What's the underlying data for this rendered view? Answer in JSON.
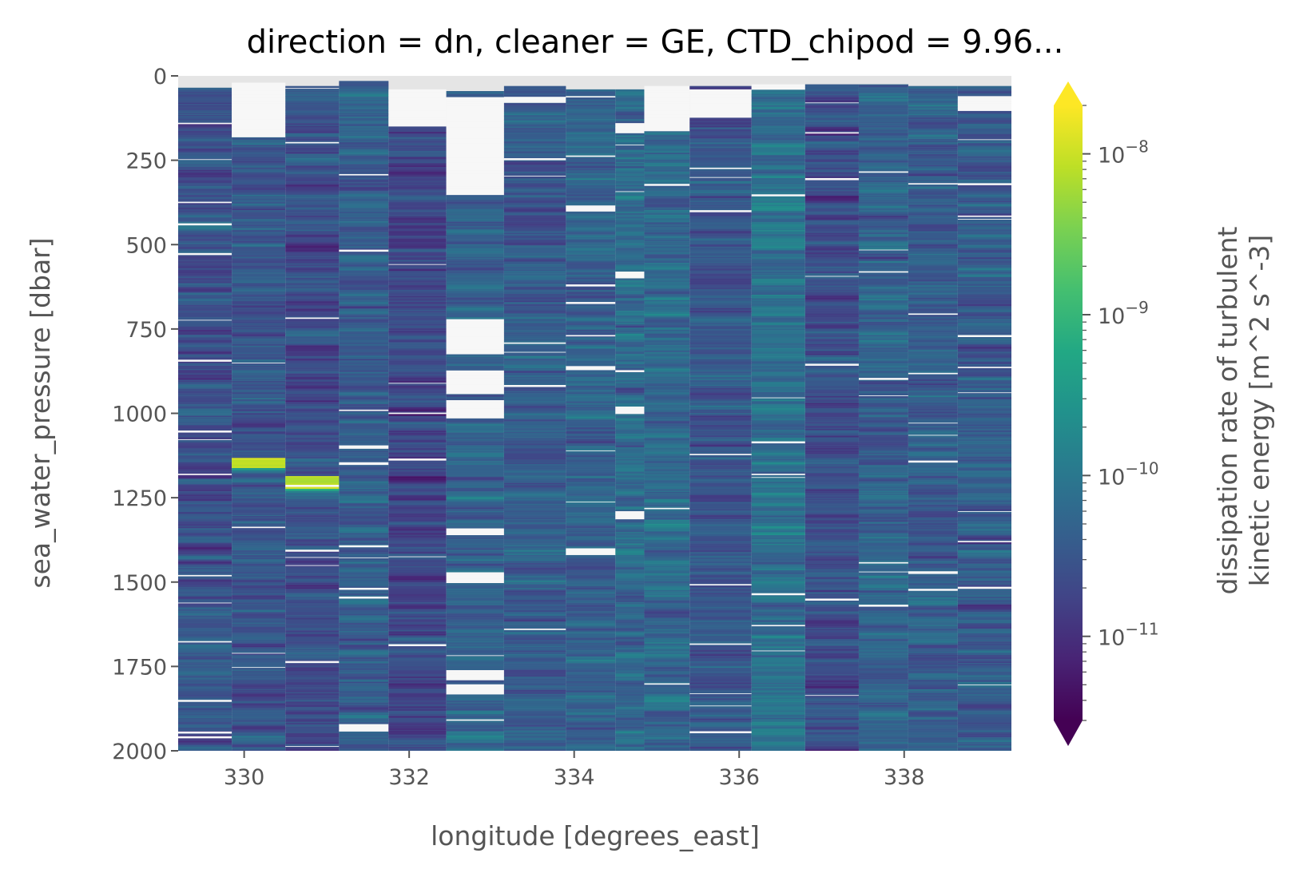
{
  "chart_data": {
    "type": "heatmap",
    "title": "direction = dn, cleaner = GE, CTD_chipod = 9.96...",
    "xlabel": "longitude [degrees_east]",
    "ylabel": "sea_water_pressure [dbar]",
    "xlim": [
      329.2,
      339.3
    ],
    "ylim": [
      0,
      2000
    ],
    "y_inverted": true,
    "x_ticks": [
      330,
      332,
      334,
      336,
      338
    ],
    "x_tick_labels": [
      "330",
      "332",
      "334",
      "336",
      "338"
    ],
    "y_ticks": [
      0,
      250,
      500,
      750,
      1000,
      1250,
      1500,
      1750,
      2000
    ],
    "y_tick_labels": [
      "0",
      "250",
      "500",
      "750",
      "1000",
      "1250",
      "1500",
      "1750",
      "2000"
    ],
    "background_color": "#e5e5e5",
    "colorbar": {
      "label_line1": "dissipation rate of turbulent",
      "label_line2": "kinetic energy [m^2 s^-3]",
      "scale": "log",
      "vmin": 3e-12,
      "vmax": 2e-08,
      "extend": "both",
      "colormap": "viridis",
      "ticks": [
        1e-11,
        1e-10,
        1e-09,
        1e-08
      ],
      "tick_base": "10",
      "tick_exponents": [
        "−11",
        "−10",
        "−9",
        "−8"
      ]
    },
    "columns": [
      {
        "lon_start": 329.2,
        "lon_end": 329.85,
        "p_start": 35,
        "median_log": -10.6,
        "gaps": []
      },
      {
        "lon_start": 329.85,
        "lon_end": 330.5,
        "p_start": 20,
        "median_log": -10.5,
        "gaps": [
          [
            20,
            180
          ]
        ],
        "hotspots": [
          [
            1130,
            1160
          ]
        ]
      },
      {
        "lon_start": 330.5,
        "lon_end": 331.15,
        "p_start": 30,
        "median_log": -10.6,
        "gaps": [],
        "hotspots": [
          [
            1185,
            1220
          ]
        ]
      },
      {
        "lon_start": 331.15,
        "lon_end": 331.75,
        "p_start": 15,
        "median_log": -10.4,
        "gaps": [
          [
            1920,
            1940
          ]
        ]
      },
      {
        "lon_start": 331.75,
        "lon_end": 332.45,
        "p_start": 40,
        "median_log": -10.7,
        "gaps": [
          [
            40,
            150
          ]
        ]
      },
      {
        "lon_start": 332.45,
        "lon_end": 333.15,
        "p_start": 45,
        "median_log": -10.3,
        "gaps": [
          [
            60,
            350
          ],
          [
            720,
            820
          ],
          [
            870,
            940
          ],
          [
            960,
            1010
          ],
          [
            1340,
            1360
          ],
          [
            1470,
            1500
          ],
          [
            1760,
            1790
          ],
          [
            1800,
            1830
          ]
        ]
      },
      {
        "lon_start": 333.15,
        "lon_end": 333.9,
        "p_start": 30,
        "median_log": -10.4,
        "gaps": [
          [
            60,
            80
          ]
        ]
      },
      {
        "lon_start": 333.9,
        "lon_end": 334.5,
        "p_start": 40,
        "median_log": -10.3,
        "gaps": [
          [
            380,
            400
          ],
          [
            860,
            870
          ],
          [
            1400,
            1420
          ]
        ]
      },
      {
        "lon_start": 334.5,
        "lon_end": 334.85,
        "p_start": 40,
        "median_log": -10.2,
        "gaps": [
          [
            140,
            170
          ],
          [
            580,
            600
          ],
          [
            980,
            1000
          ],
          [
            1290,
            1310
          ]
        ]
      },
      {
        "lon_start": 334.85,
        "lon_end": 335.4,
        "p_start": 30,
        "median_log": -10.2,
        "gaps": [
          [
            30,
            160
          ]
        ]
      },
      {
        "lon_start": 335.4,
        "lon_end": 336.15,
        "p_start": 30,
        "median_log": -10.5,
        "gaps": [
          [
            40,
            120
          ]
        ]
      },
      {
        "lon_start": 336.15,
        "lon_end": 336.8,
        "p_start": 25,
        "median_log": -10.1,
        "gaps": [
          [
            25,
            40
          ]
        ]
      },
      {
        "lon_start": 336.8,
        "lon_end": 337.45,
        "p_start": 25,
        "median_log": -10.6,
        "gaps": []
      },
      {
        "lon_start": 337.45,
        "lon_end": 338.05,
        "p_start": 25,
        "median_log": -10.3,
        "gaps": []
      },
      {
        "lon_start": 338.05,
        "lon_end": 338.65,
        "p_start": 30,
        "median_log": -10.4,
        "gaps": []
      },
      {
        "lon_start": 338.65,
        "lon_end": 339.3,
        "p_start": 30,
        "median_log": -10.4,
        "gaps": [
          [
            60,
            100
          ]
        ]
      }
    ]
  }
}
